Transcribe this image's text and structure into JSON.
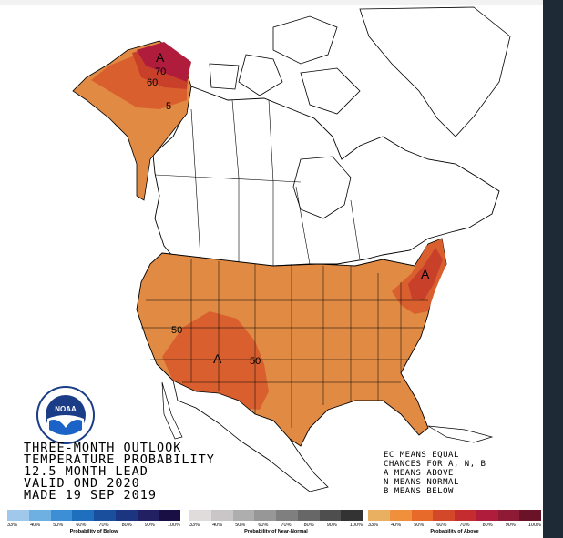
{
  "map": {
    "contour_labels": {
      "alaska_70": "70",
      "alaska_60": "60",
      "alaska_50": "5",
      "sw_50_left": "50",
      "sw_50_right": "50"
    },
    "category_markers": {
      "alaska": "A",
      "southwest": "A",
      "northeast": "A"
    },
    "colors": {
      "above_40": "#e08a44",
      "above_50": "#d9602e",
      "above_60": "#c8402a",
      "above_70": "#b01c3c",
      "land": "#ffffff",
      "border": "#000000"
    }
  },
  "title": {
    "line1": "THREE-MONTH OUTLOOK",
    "line2": "TEMPERATURE PROBABILITY",
    "line3": "12.5 MONTH LEAD",
    "line4": "VALID OND 2020",
    "line5": "MADE 19 SEP 2019"
  },
  "key": {
    "line1": "EC MEANS EQUAL",
    "line2": "CHANCES FOR A, N, B",
    "line3": "A MEANS ABOVE",
    "line4": "N MEANS NORMAL",
    "line5": "B MEANS BELOW"
  },
  "legends": [
    {
      "caption": "Probability of Below",
      "ticks": [
        "33%",
        "40%",
        "50%",
        "60%",
        "70%",
        "80%",
        "90%",
        "100%"
      ],
      "colors": [
        "#9fc8ea",
        "#6fb0e2",
        "#3c8fd4",
        "#1f6fbf",
        "#1a4f9e",
        "#1c3580",
        "#221f63",
        "#1a0f44"
      ]
    },
    {
      "caption": "Probability of Near-Normal",
      "ticks": [
        "33%",
        "40%",
        "50%",
        "60%",
        "70%",
        "80%",
        "90%",
        "100%"
      ],
      "colors": [
        "#e0dcdc",
        "#c8c6c6",
        "#aeaeae",
        "#979797",
        "#7f7f7f",
        "#676767",
        "#4e4e4e",
        "#333333"
      ]
    },
    {
      "caption": "Probability of Above",
      "ticks": [
        "33%",
        "40%",
        "50%",
        "60%",
        "70%",
        "80%",
        "90%",
        "100%"
      ],
      "colors": [
        "#e8b060",
        "#f0903c",
        "#e86a2a",
        "#d4482a",
        "#c42c30",
        "#b01c3c",
        "#8e1a36",
        "#6a1228"
      ]
    }
  ],
  "logo": {
    "name": "NOAA",
    "ring_text": "NATIONAL OCEANIC AND ATMOSPHERIC ADMINISTRATION · U.S. DEPARTMENT OF COMMERCE"
  },
  "icons": {
    "logo": "noaa-logo-icon"
  }
}
